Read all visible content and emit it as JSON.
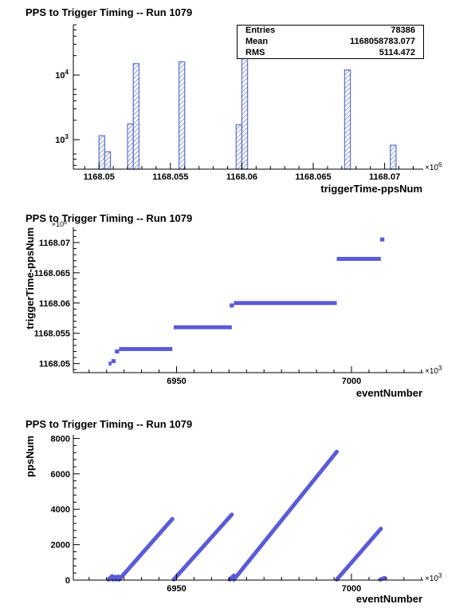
{
  "panels": [
    {
      "title": "PPS to Trigger Timing -- Run 1079",
      "xlabel": "triggerTime-ppsNum",
      "ylabel": "",
      "x_multiplier": "×10",
      "x_multiplier_exp": "6",
      "stats": [
        {
          "key": "Entries",
          "value": "78386"
        },
        {
          "key": "Mean",
          "value": "1168058783.077"
        },
        {
          "key": "RMS",
          "value": "5114.472"
        }
      ]
    },
    {
      "title": "PPS to Trigger Timing -- Run 1079",
      "xlabel": "eventNumber",
      "ylabel": "triggerTime-ppsNum",
      "x_multiplier": "×10",
      "x_multiplier_exp": "3",
      "y_multiplier": "×10",
      "y_multiplier_exp": "6"
    },
    {
      "title": "PPS to Trigger Timing -- Run 1079",
      "xlabel": "eventNumber",
      "ylabel": "ppsNum",
      "x_multiplier": "×10",
      "x_multiplier_exp": "3"
    }
  ],
  "chart_data": [
    {
      "type": "bar",
      "subtype": "histogram",
      "title": "PPS to Trigger Timing -- Run 1079",
      "xlabel": "triggerTime-ppsNum",
      "ylabel": "",
      "x_unit_multiplier": 1000000,
      "xlim": [
        1168.0482,
        1168.0727
      ],
      "ylim": [
        350,
        60000
      ],
      "yscale": "log",
      "xticks": [
        "1168.05",
        "1168.055",
        "1168.06",
        "1168.065",
        "1168.07"
      ],
      "yticks": [
        "10^3",
        "10^4"
      ],
      "bin_width": 0.0004,
      "bins": [
        {
          "x": 1168.05,
          "count": 1150
        },
        {
          "x": 1168.0504,
          "count": 650
        },
        {
          "x": 1168.052,
          "count": 1750
        },
        {
          "x": 1168.0524,
          "count": 15000
        },
        {
          "x": 1168.0556,
          "count": 16000
        },
        {
          "x": 1168.0596,
          "count": 1700
        },
        {
          "x": 1168.06,
          "count": 29000
        },
        {
          "x": 1168.0672,
          "count": 12000
        },
        {
          "x": 1168.0704,
          "count": 820
        }
      ],
      "fill": "#6677cc",
      "stats": {
        "Entries": "78386",
        "Mean": "1168058783.077",
        "RMS": "5114.472"
      }
    },
    {
      "type": "scatter",
      "title": "PPS to Trigger Timing -- Run 1079",
      "xlabel": "eventNumber",
      "ylabel": "triggerTime-ppsNum",
      "x_unit_multiplier": 1000,
      "y_unit_multiplier": 1000000,
      "xlim": [
        6920.5,
        7020.5
      ],
      "ylim": [
        1168.0485,
        1168.0725
      ],
      "xticks": [
        "6950",
        "7000"
      ],
      "yticks": [
        "1168.05",
        "1168.055",
        "1168.06",
        "1168.065",
        "1168.07"
      ],
      "color": "#5b5bd6",
      "segments": [
        {
          "x": [
            6930.6,
            6931.4
          ],
          "y": 1168.05
        },
        {
          "x": [
            6931.4,
            6932.6
          ],
          "y": 1168.0504
        },
        {
          "x": [
            6932.4,
            6933.6
          ],
          "y": 1168.052
        },
        {
          "x": [
            6933.6,
            6948.8
          ],
          "y": 1168.0524
        },
        {
          "x": [
            6949.2,
            6965.8
          ],
          "y": 1168.056
        },
        {
          "x": [
            6965.2,
            6966.4
          ],
          "y": 1168.0596
        },
        {
          "x": [
            6966.4,
            6995.8
          ],
          "y": 1168.06
        },
        {
          "x": [
            6995.8,
            7008.4
          ],
          "y": 1168.0673
        },
        {
          "x": [
            7008.2,
            7009.4
          ],
          "y": 1168.0705
        }
      ]
    },
    {
      "type": "scatter",
      "title": "PPS to Trigger Timing -- Run 1079",
      "xlabel": "eventNumber",
      "ylabel": "ppsNum",
      "x_unit_multiplier": 1000,
      "xlim": [
        6920.5,
        7020.5
      ],
      "ylim": [
        0,
        8200
      ],
      "xticks": [
        "6950",
        "7000"
      ],
      "yticks": [
        "0",
        "2000",
        "4000",
        "6000",
        "8000"
      ],
      "color": "#5b5bd6",
      "segments": [
        {
          "x": [
            6930.6,
            6931.6
          ],
          "y": [
            30,
            230
          ]
        },
        {
          "x": [
            6931.8,
            6932.6
          ],
          "y": [
            30,
            190
          ]
        },
        {
          "x": [
            6932.8,
            6933.4
          ],
          "y": [
            30,
            200
          ]
        },
        {
          "x": [
            6933.6,
            6948.8
          ],
          "y": [
            30,
            3450
          ]
        },
        {
          "x": [
            6949.2,
            6965.8
          ],
          "y": [
            30,
            3700
          ]
        },
        {
          "x": [
            6965.2,
            6966.4
          ],
          "y": [
            30,
            260
          ]
        },
        {
          "x": [
            6966.4,
            6995.8
          ],
          "y": [
            30,
            7250
          ]
        },
        {
          "x": [
            6995.8,
            7008.4
          ],
          "y": [
            30,
            2900
          ]
        },
        {
          "x": [
            7008.2,
            7009.4
          ],
          "y": [
            30,
            120
          ]
        }
      ]
    }
  ]
}
